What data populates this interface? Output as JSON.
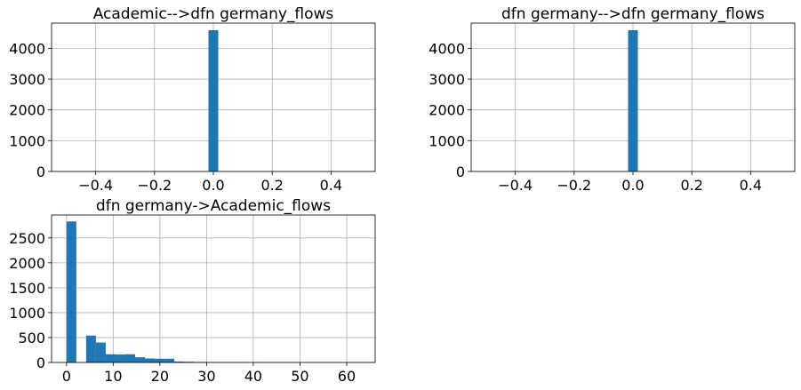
{
  "chart_data": [
    {
      "type": "bar",
      "title": "Academic-->dfn germany_flows",
      "xlim": [
        -0.55,
        0.55
      ],
      "ylim": [
        0,
        4820
      ],
      "xticks": [
        -0.4,
        -0.2,
        0.0,
        0.2,
        0.4
      ],
      "xtick_labels": [
        "−0.4",
        "−0.2",
        "0.0",
        "0.2",
        "0.4"
      ],
      "yticks": [
        0,
        1000,
        2000,
        3000,
        4000
      ],
      "ytick_labels": [
        "0",
        "1000",
        "2000",
        "3000",
        "4000"
      ],
      "grid": true,
      "bins": [
        {
          "x0": -0.0167,
          "x1": 0.0167,
          "count": 4590
        }
      ]
    },
    {
      "type": "bar",
      "title": "dfn germany-->dfn germany_flows",
      "xlim": [
        -0.55,
        0.55
      ],
      "ylim": [
        0,
        4820
      ],
      "xticks": [
        -0.4,
        -0.2,
        0.0,
        0.2,
        0.4
      ],
      "xtick_labels": [
        "−0.4",
        "−0.2",
        "0.0",
        "0.2",
        "0.4"
      ],
      "yticks": [
        0,
        1000,
        2000,
        3000,
        4000
      ],
      "ytick_labels": [
        "0",
        "1000",
        "2000",
        "3000",
        "4000"
      ],
      "grid": true,
      "bins": [
        {
          "x0": -0.0167,
          "x1": 0.0167,
          "count": 4590
        }
      ]
    },
    {
      "type": "bar",
      "title": "dfn germany->Academic_flows",
      "xlim": [
        -3.2,
        66.1
      ],
      "ylim": [
        0,
        2960
      ],
      "xticks": [
        0,
        10,
        20,
        30,
        40,
        50,
        60
      ],
      "xtick_labels": [
        "0",
        "10",
        "20",
        "30",
        "40",
        "50",
        "60"
      ],
      "yticks": [
        0,
        500,
        1000,
        1500,
        2000,
        2500
      ],
      "ytick_labels": [
        "0",
        "500",
        "1000",
        "1500",
        "2000",
        "2500"
      ],
      "grid": true,
      "bins": [
        {
          "x0": 0.0,
          "x1": 2.1,
          "count": 2830
        },
        {
          "x0": 2.1,
          "x1": 4.2,
          "count": 0
        },
        {
          "x0": 4.2,
          "x1": 6.3,
          "count": 540
        },
        {
          "x0": 6.3,
          "x1": 8.4,
          "count": 400
        },
        {
          "x0": 8.4,
          "x1": 10.5,
          "count": 165
        },
        {
          "x0": 10.5,
          "x1": 12.6,
          "count": 160
        },
        {
          "x0": 12.6,
          "x1": 14.7,
          "count": 165
        },
        {
          "x0": 14.7,
          "x1": 16.8,
          "count": 105
        },
        {
          "x0": 16.8,
          "x1": 18.9,
          "count": 80
        },
        {
          "x0": 18.9,
          "x1": 21.0,
          "count": 75
        },
        {
          "x0": 21.0,
          "x1": 23.1,
          "count": 75
        },
        {
          "x0": 23.1,
          "x1": 25.2,
          "count": 20
        },
        {
          "x0": 25.2,
          "x1": 27.3,
          "count": 15
        },
        {
          "x0": 27.3,
          "x1": 29.4,
          "count": 10
        },
        {
          "x0": 29.4,
          "x1": 31.5,
          "count": 8
        },
        {
          "x0": 31.5,
          "x1": 33.6,
          "count": 6
        },
        {
          "x0": 33.6,
          "x1": 35.7,
          "count": 5
        },
        {
          "x0": 35.7,
          "x1": 37.8,
          "count": 4
        },
        {
          "x0": 37.8,
          "x1": 39.9,
          "count": 3
        },
        {
          "x0": 39.9,
          "x1": 42.0,
          "count": 3
        },
        {
          "x0": 42.0,
          "x1": 44.1,
          "count": 2
        },
        {
          "x0": 44.1,
          "x1": 46.2,
          "count": 2
        },
        {
          "x0": 46.2,
          "x1": 48.3,
          "count": 2
        },
        {
          "x0": 48.3,
          "x1": 50.4,
          "count": 1
        },
        {
          "x0": 50.4,
          "x1": 52.5,
          "count": 1
        },
        {
          "x0": 52.5,
          "x1": 54.6,
          "count": 1
        },
        {
          "x0": 54.6,
          "x1": 56.7,
          "count": 1
        },
        {
          "x0": 56.7,
          "x1": 58.8,
          "count": 1
        },
        {
          "x0": 58.8,
          "x1": 60.9,
          "count": 1
        },
        {
          "x0": 60.9,
          "x1": 63.0,
          "count": 1
        }
      ]
    }
  ],
  "colors": {
    "bar": "#1f77b4",
    "grid": "#b0b0b0",
    "axis": "#000000",
    "background": "#ffffff"
  }
}
